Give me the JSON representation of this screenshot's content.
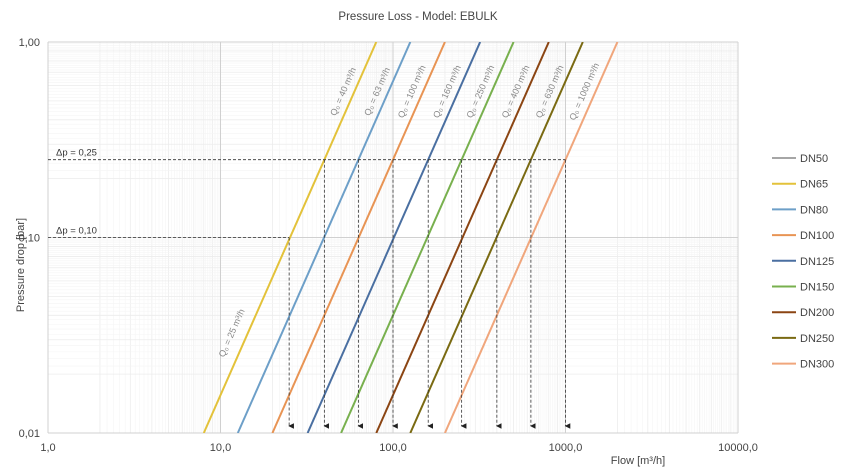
{
  "chart_data": {
    "type": "line",
    "title": "Pressure Loss  - Model: EBULK",
    "xlabel": "Flow [m³/h]",
    "ylabel": "Pressure drop [bar]",
    "x_scale": "log",
    "y_scale": "log",
    "xlim": [
      1,
      10000
    ],
    "ylim": [
      0.01,
      1
    ],
    "x_ticks": [
      "1,0",
      "10,0",
      "100,0",
      "1000,0",
      "10000,0"
    ],
    "y_ticks": [
      "0,01",
      "0,10",
      "1,00"
    ],
    "grid": true,
    "legend_position": "right",
    "series": [
      {
        "name": "DN50",
        "color": "#a6a6a6",
        "x": [],
        "y": []
      },
      {
        "name": "DN65",
        "color": "#e3c23a",
        "x": [
          8.0,
          40.0
        ],
        "y": [
          0.01,
          0.25
        ]
      },
      {
        "name": "DN80",
        "color": "#6d9fc8",
        "x": [
          12.6,
          63.0
        ],
        "y": [
          0.01,
          0.25
        ]
      },
      {
        "name": "DN100",
        "color": "#e89454",
        "x": [
          20.0,
          100.0
        ],
        "y": [
          0.01,
          0.25
        ]
      },
      {
        "name": "DN125",
        "color": "#4a6fa1",
        "x": [
          32.0,
          160.0
        ],
        "y": [
          0.01,
          0.25
        ]
      },
      {
        "name": "DN150",
        "color": "#78b04e",
        "x": [
          50.0,
          250.0
        ],
        "y": [
          0.01,
          0.25
        ]
      },
      {
        "name": "DN200",
        "color": "#8b4513",
        "x": [
          80.0,
          400.0
        ],
        "y": [
          0.01,
          0.25
        ]
      },
      {
        "name": "DN250",
        "color": "#7a6a12",
        "x": [
          126.0,
          630.0
        ],
        "y": [
          0.01,
          0.25
        ]
      },
      {
        "name": "DN300",
        "color": "#f0a67c",
        "x": [
          200.0,
          1000.0
        ],
        "y": [
          0.01,
          0.25
        ]
      }
    ],
    "line_labels": [
      "Q₀ = 40 m³/h",
      "Q₀ = 63 m³/h",
      "Q₀ = 100 m³/h",
      "Q₀ = 160 m³/h",
      "Q₀ = 250 m³/h",
      "Q₀ = 400 m³/h",
      "Q₀ = 630 m³/h",
      "Q₀ = 1000 m³/h",
      "Q₀ = 25 m³/h"
    ],
    "line_label_flows": [
      40,
      63,
      100,
      160,
      250,
      400,
      630,
      1000,
      25
    ],
    "annotations": [
      {
        "text": "Δp = 0,25",
        "y": 0.25,
        "flows": [
          40,
          63,
          100,
          160,
          250,
          400,
          630,
          1000
        ]
      },
      {
        "text": "Δp = 0,10",
        "y": 0.1,
        "flows": [
          25
        ]
      }
    ]
  }
}
